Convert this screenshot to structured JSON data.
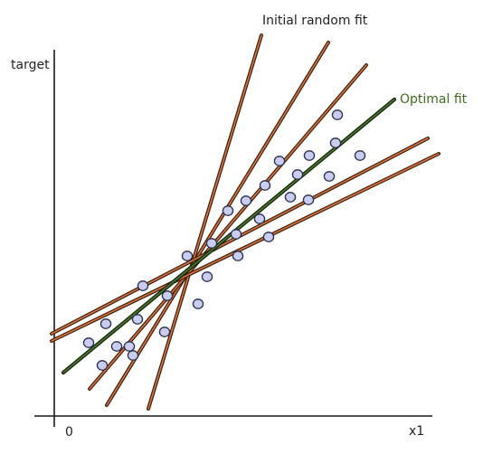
{
  "labels": {
    "y_axis": "target",
    "x_axis": "x1",
    "origin": "0",
    "initial_fit": "Initial random fit",
    "optimal_fit": "Optimal fit"
  },
  "colors": {
    "axis": "#1a1a1a",
    "random_line_outer": "#3a1f12",
    "random_line_inner": "#d9743a",
    "optimal_line_outer": "#16240f",
    "optimal_line_inner": "#4a7a2a",
    "point_fill": "#c9cdf2",
    "point_stroke": "#2b2f4a",
    "optimal_label": "#3f6a1f"
  },
  "line_types": [
    "initial-random",
    "optimal"
  ],
  "point_style": "circle"
}
